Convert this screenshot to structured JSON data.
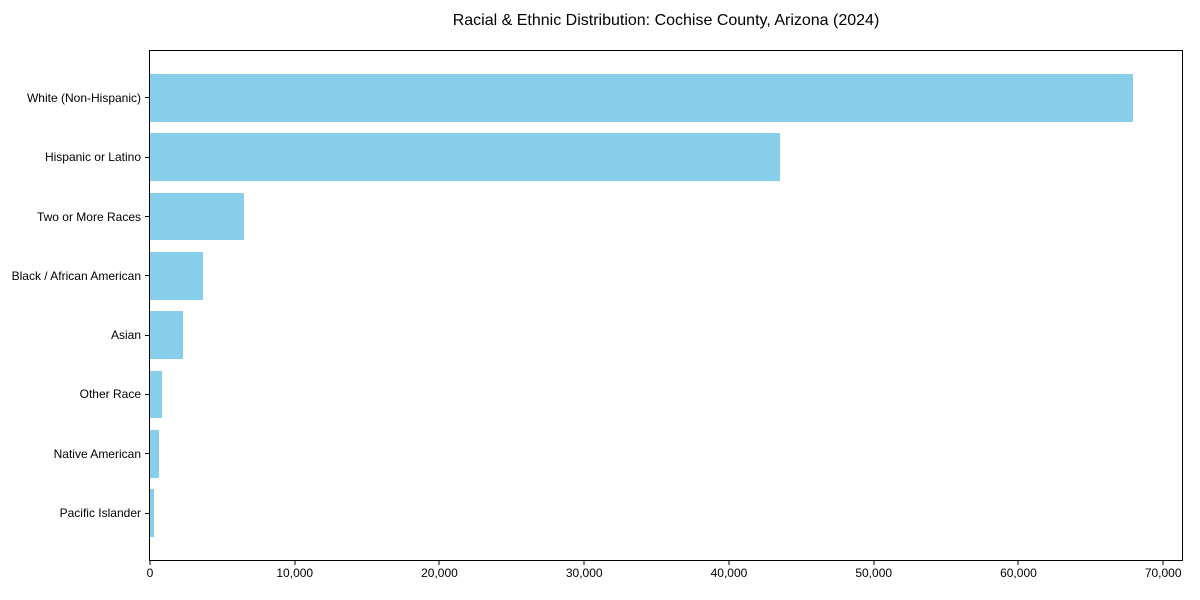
{
  "chart_data": {
    "type": "bar",
    "orientation": "horizontal",
    "title": "Racial & Ethnic Distribution: Cochise County, Arizona (2024)",
    "categories": [
      "White (Non-Hispanic)",
      "Hispanic or Latino",
      "Two or More Races",
      "Black / African American",
      "Asian",
      "Other Race",
      "Native American",
      "Pacific Islander"
    ],
    "values": [
      67900,
      43500,
      6500,
      3650,
      2300,
      850,
      650,
      250
    ],
    "bar_color": "#87CEEB",
    "axis_color": "#000000",
    "background_color": "#ffffff",
    "xlabel": "",
    "ylabel": "",
    "xlim": [
      0,
      71300
    ],
    "x_ticks": [
      0,
      10000,
      20000,
      30000,
      40000,
      50000,
      60000,
      70000
    ],
    "x_tick_labels": [
      "0",
      "10,000",
      "20,000",
      "30,000",
      "40,000",
      "50,000",
      "60,000",
      "70,000"
    ],
    "grid": false,
    "legend": null
  }
}
